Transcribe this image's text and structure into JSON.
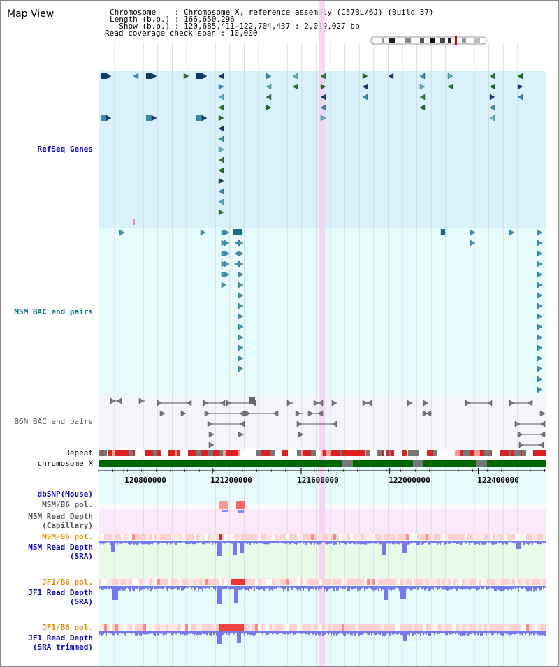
{
  "map_title": "Map View",
  "info": {
    "chromosome_line": "Chromosome    : Chromosome X, reference assembly (C57BL/6J) (Build 37)",
    "length_line": "Length (b.p.) : 166,650,296",
    "show_line": "  Show (b.p.) : 120,685,411-122,704,437 : 2,019,027 bp",
    "coverage_line": "Read coverage check span : 10,000"
  },
  "tracks": {
    "refseq": "RefSeq Genes",
    "msm_bac": "MSM BAC end pairs",
    "b6n_bac": "B6N BAC end pairs",
    "repeat": "Repeat",
    "chromosome": "chromosome X",
    "dbsnp": "dbSNP(Mouse)",
    "msm_b6_pol_1": "MSM/B6 pol.",
    "msm_depth_cap_1": "MSM Read Depth",
    "msm_depth_cap_2": "(Capillary)",
    "msm_b6_pol_2": "MSM/B6 pol.",
    "msm_depth_sra_1": "MSM Read Depth",
    "msm_depth_sra_2": "(SRA)",
    "jf1_b6_pol_1": "JF1/B6 pol.",
    "jf1_depth_sra_1": "JF1 Read Depth",
    "jf1_depth_sra_2": "(SRA)",
    "jf1_b6_pol_2": "JF1/B6 pol.",
    "jf1_depth_trim_1": "JF1 Read Depth",
    "jf1_depth_trim_2": "(SRA trimmed)"
  },
  "axis": {
    "ticks": [
      "120800000",
      "121200000",
      "121600000",
      "122000000",
      "122400000"
    ],
    "tick_values": [
      120800000,
      121200000,
      121600000,
      122000000,
      122400000
    ],
    "range": [
      120685411,
      122704437
    ]
  },
  "colors": {
    "refseq_bg": "#d9f1fb",
    "msm_bg": "#e6fbfb",
    "b6n_bg": "#f4f4fb",
    "depth_pink_bg": "#fbe9fb",
    "depth_green_bg": "#e9fbe9",
    "cyan_bg": "#e6fbfb",
    "highlight": "#f6d0f0",
    "label_blue": "#0000c0",
    "label_teal": "#006a80",
    "label_orange": "#ee8800",
    "chromosome_green": "#006600",
    "depth_bar": "#7777ee"
  }
}
